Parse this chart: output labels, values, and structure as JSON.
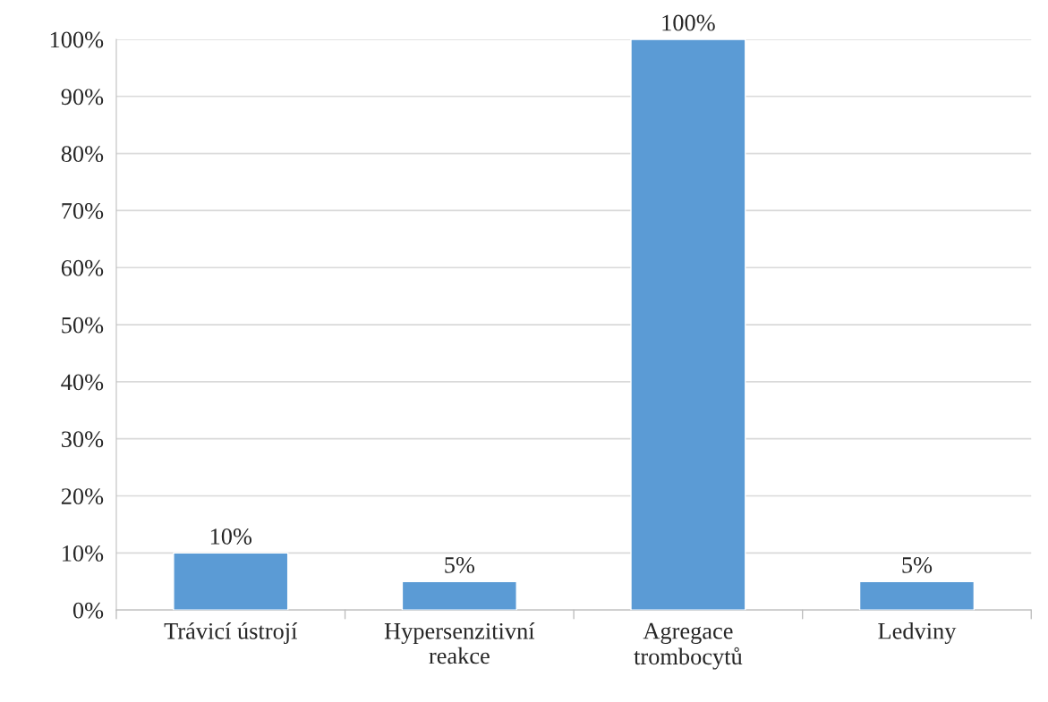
{
  "chart_data": {
    "type": "bar",
    "categories": [
      "Trávicí ústrojí",
      "Hypersenzitivní\nreakce",
      "Agregace\ntrombocytů",
      "Ledviny"
    ],
    "values": [
      10,
      5,
      100,
      5
    ],
    "value_labels": [
      "10%",
      "5%",
      "100%",
      "5%"
    ],
    "color": "#5b9bd5",
    "ylim": [
      0,
      100
    ],
    "yticks": [
      {
        "value": 0,
        "label": "0%"
      },
      {
        "value": 10,
        "label": "10%"
      },
      {
        "value": 20,
        "label": "20%"
      },
      {
        "value": 30,
        "label": "30%"
      },
      {
        "value": 40,
        "label": "40%"
      },
      {
        "value": 50,
        "label": "50%"
      },
      {
        "value": 60,
        "label": "60%"
      },
      {
        "value": 70,
        "label": "70%"
      },
      {
        "value": 80,
        "label": "80%"
      },
      {
        "value": 90,
        "label": "90%"
      },
      {
        "value": 100,
        "label": "100%"
      }
    ],
    "grid": "y",
    "legend": false
  }
}
